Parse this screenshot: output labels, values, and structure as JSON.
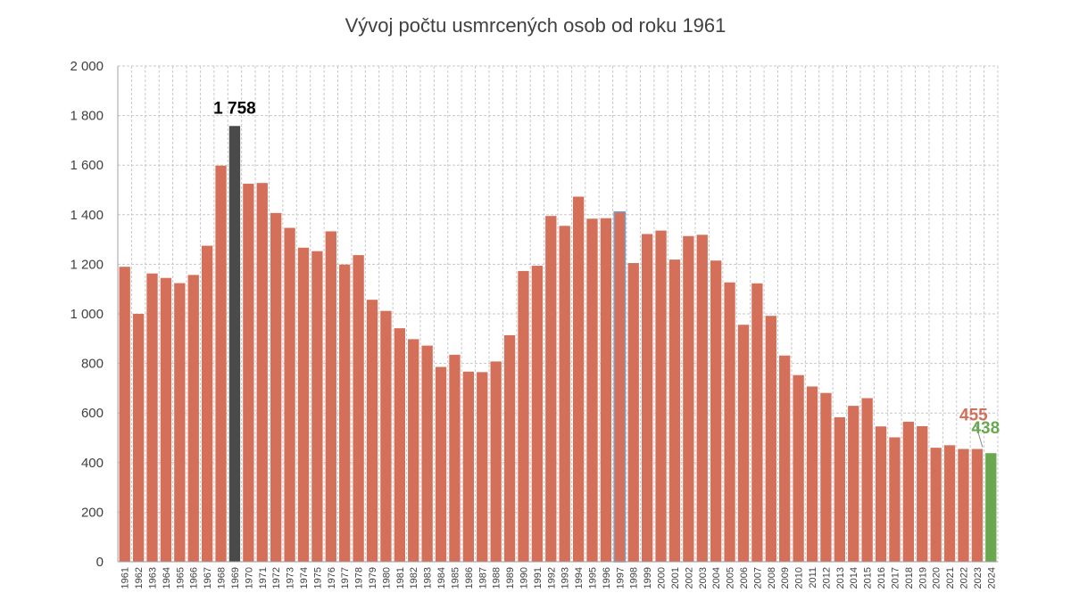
{
  "chart_data": {
    "type": "bar",
    "title": "Vývoj počtu usmrcených osob od roku 1961",
    "xlabel": "",
    "ylabel": "",
    "ylim": [
      0,
      2000
    ],
    "yticks": [
      0,
      200,
      400,
      600,
      800,
      1000,
      1200,
      1400,
      1600,
      1800,
      2000
    ],
    "ytick_labels": [
      "0",
      "200",
      "400",
      "600",
      "800",
      "1 000",
      "1 200",
      "1 400",
      "1 600",
      "1 800",
      "2 000"
    ],
    "grid": true,
    "categories": [
      "1961",
      "1962",
      "1963",
      "1964",
      "1965",
      "1966",
      "1967",
      "1968",
      "1969",
      "1970",
      "1971",
      "1972",
      "1973",
      "1974",
      "1975",
      "1976",
      "1977",
      "1978",
      "1979",
      "1980",
      "1981",
      "1982",
      "1983",
      "1984",
      "1985",
      "1986",
      "1987",
      "1988",
      "1989",
      "1990",
      "1991",
      "1992",
      "1993",
      "1994",
      "1995",
      "1996",
      "1997",
      "1998",
      "1999",
      "2000",
      "2001",
      "2002",
      "2003",
      "2004",
      "2005",
      "2006",
      "2007",
      "2008",
      "2009",
      "2010",
      "2011",
      "2012",
      "2013",
      "2014",
      "2015",
      "2016",
      "2017",
      "2018",
      "2019",
      "2020",
      "2021",
      "2022",
      "2023",
      "2024"
    ],
    "values": [
      1190,
      1000,
      1163,
      1145,
      1124,
      1157,
      1275,
      1598,
      1758,
      1525,
      1528,
      1407,
      1347,
      1267,
      1253,
      1333,
      1199,
      1237,
      1057,
      1012,
      942,
      898,
      872,
      786,
      835,
      767,
      765,
      808,
      914,
      1173,
      1194,
      1395,
      1355,
      1473,
      1384,
      1386,
      1411,
      1205,
      1322,
      1336,
      1219,
      1314,
      1319,
      1215,
      1127,
      956,
      1123,
      992,
      832,
      753,
      707,
      681,
      583,
      629,
      660,
      546,
      502,
      565,
      547,
      460,
      470,
      455,
      455,
      438
    ],
    "colors": {
      "default": "#d4705a",
      "highlight_max": "#4a4a4a",
      "highlight_1997_outline": "#7a9cc6",
      "latest": "#6aa84f",
      "grid": "#c8c8c8"
    },
    "annotations": [
      {
        "category": "1969",
        "text": "1 758",
        "color": "#000000"
      },
      {
        "category": "2023",
        "text": "455",
        "color": "#d4705a"
      },
      {
        "category": "2024",
        "text": "438",
        "color": "#6aa84f"
      }
    ]
  }
}
